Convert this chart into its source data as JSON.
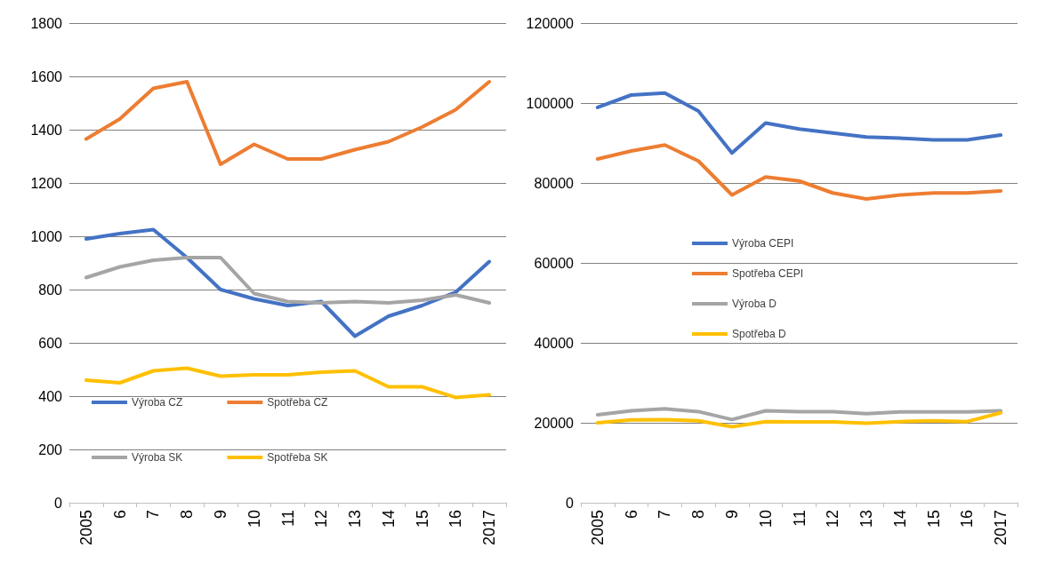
{
  "chart_data": [
    {
      "type": "line",
      "categories": [
        "2005",
        "6",
        "7",
        "8",
        "9",
        "10",
        "11",
        "12",
        "13",
        "14",
        "15",
        "16",
        "2017"
      ],
      "ylim": [
        0,
        1800
      ],
      "yticks": [
        0,
        200,
        400,
        600,
        800,
        1000,
        1200,
        1400,
        1600,
        1800
      ],
      "grid": "y",
      "legend": "bottom",
      "marker": "none",
      "line_style": "solid",
      "series": [
        {
          "name": "Výroba CZ",
          "color": "#4472c4",
          "values": [
            990,
            1010,
            1025,
            920,
            800,
            765,
            740,
            755,
            625,
            700,
            740,
            790,
            905
          ]
        },
        {
          "name": "Spotřeba CZ",
          "color": "#ed7d31",
          "values": [
            1365,
            1440,
            1555,
            1580,
            1270,
            1345,
            1290,
            1290,
            1325,
            1355,
            1410,
            1475,
            1580
          ]
        },
        {
          "name": "Výroba SK",
          "color": "#a5a5a5",
          "values": [
            845,
            885,
            910,
            920,
            920,
            785,
            755,
            750,
            755,
            750,
            760,
            780,
            750
          ]
        },
        {
          "name": "Spotřeba SK",
          "color": "#ffc000",
          "values": [
            460,
            450,
            495,
            505,
            475,
            480,
            480,
            490,
            495,
            435,
            435,
            395,
            405
          ]
        }
      ]
    },
    {
      "type": "line",
      "categories": [
        "2005",
        "6",
        "7",
        "8",
        "9",
        "10",
        "11",
        "12",
        "13",
        "14",
        "15",
        "16",
        "2017"
      ],
      "ylim": [
        0,
        120000
      ],
      "yticks": [
        0,
        20000,
        40000,
        60000,
        80000,
        100000,
        120000
      ],
      "grid": "y",
      "legend": "center",
      "marker": "none",
      "line_style": "solid",
      "series": [
        {
          "name": "Výroba CEPI",
          "color": "#4472c4",
          "values": [
            98900,
            102000,
            102500,
            98000,
            87500,
            95000,
            93500,
            92500,
            91500,
            91200,
            90800,
            90800,
            92000
          ]
        },
        {
          "name": "Spotřeba CEPI",
          "color": "#ed7d31",
          "values": [
            86000,
            88000,
            89500,
            85500,
            77000,
            81500,
            80500,
            77500,
            76000,
            77000,
            77500,
            77500,
            78000
          ]
        },
        {
          "name": "Výroba D",
          "color": "#a5a5a5",
          "values": [
            22000,
            23000,
            23500,
            22800,
            20800,
            23000,
            22800,
            22800,
            22300,
            22700,
            22700,
            22700,
            23000
          ]
        },
        {
          "name": "Spotřeba D",
          "color": "#ffc000",
          "values": [
            20000,
            20700,
            20800,
            20500,
            19000,
            20300,
            20200,
            20200,
            19900,
            20300,
            20500,
            20300,
            22500
          ]
        }
      ]
    }
  ]
}
